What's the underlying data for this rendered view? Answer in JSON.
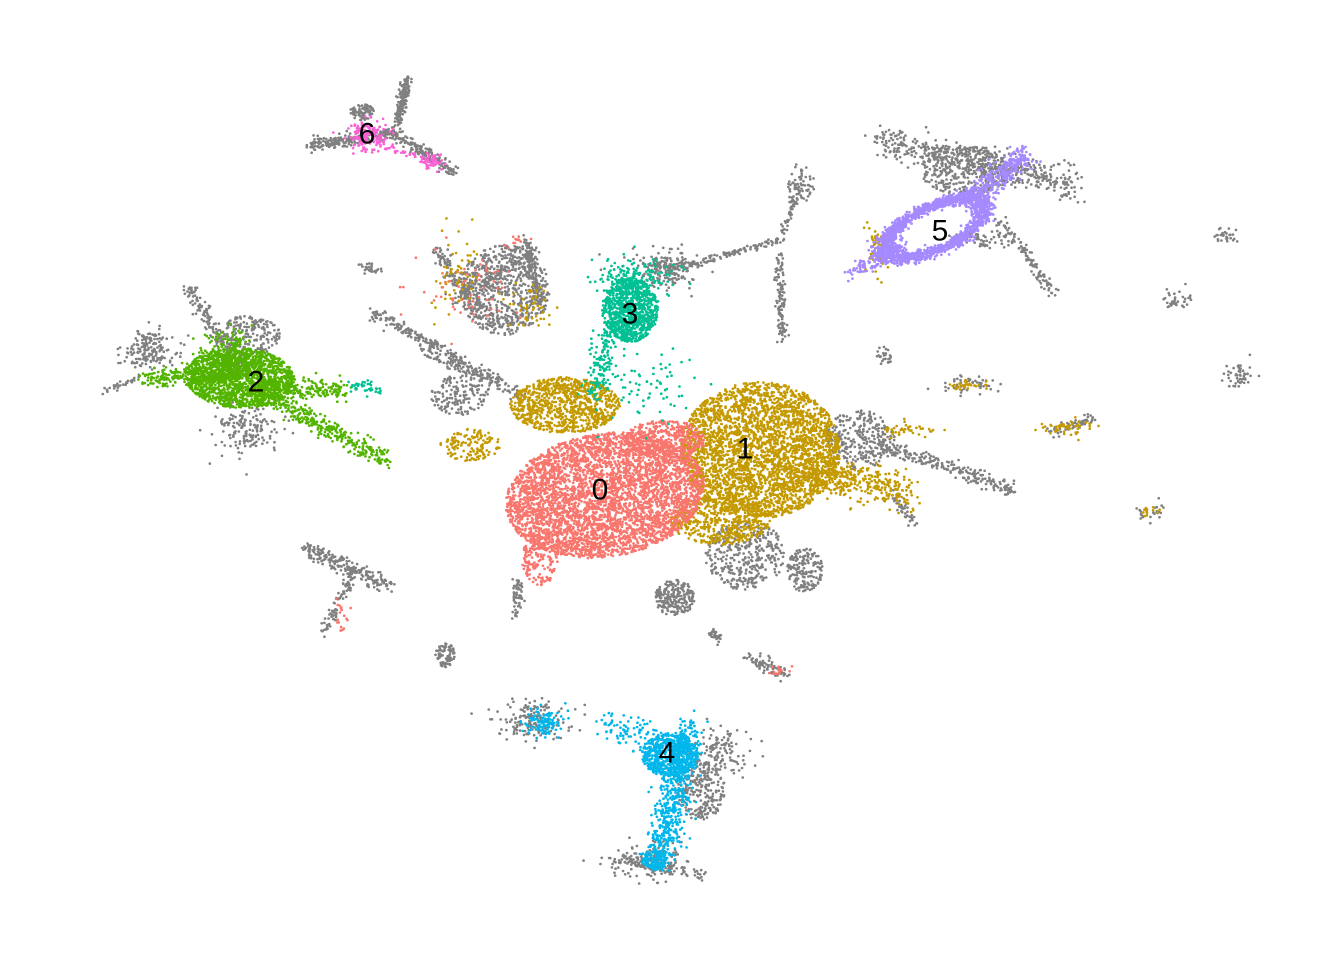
{
  "chart_data": {
    "type": "scatter",
    "title": "",
    "xlabel": "",
    "ylabel": "",
    "axes_visible": false,
    "grid": false,
    "legend": "none",
    "background_color": "#808080",
    "clusters": [
      {
        "label": "0",
        "color": "#F8766D"
      },
      {
        "label": "1",
        "color": "#C49A00"
      },
      {
        "label": "2",
        "color": "#53B400"
      },
      {
        "label": "3",
        "color": "#00C094"
      },
      {
        "label": "4",
        "color": "#00B6EB"
      },
      {
        "label": "5",
        "color": "#A58AFF"
      },
      {
        "label": "6",
        "color": "#FB61D7"
      }
    ]
  }
}
